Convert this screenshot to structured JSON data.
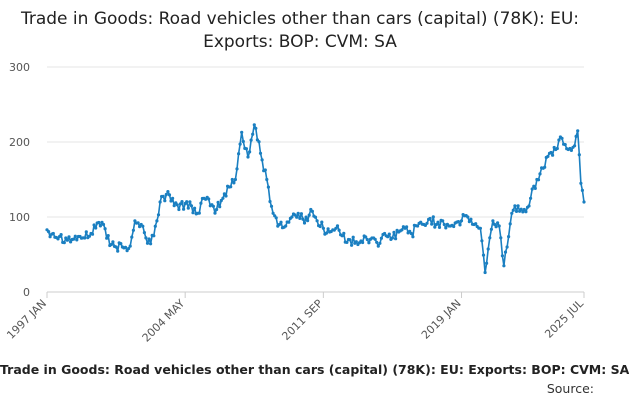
{
  "chart_data": {
    "type": "line",
    "title": "Trade in Goods: Road vehicles other than cars (capital) (78K): EU: Exports: BOP: CVM: SA",
    "footer_title": "Trade in Goods: Road vehicles other than cars (capital) (78K): EU: Exports: BOP: CVM: SA",
    "source_label": "Source:",
    "xlabel": "",
    "ylabel": "",
    "ylim": [
      0,
      300
    ],
    "yticks": [
      0,
      100,
      200,
      300
    ],
    "x_range": [
      "1997 JAN",
      "2025 JUL"
    ],
    "xticks": [
      "1997 JAN",
      "2004 MAY",
      "2011 SEP",
      "2019 JAN",
      "2025 JUL"
    ],
    "grid": "horizontal",
    "series_color": "#1a7fc1",
    "series": [
      {
        "name": "",
        "frequency": "monthly",
        "start": "1997 JAN",
        "end": "2025 JUL",
        "points": [
          [
            "1997 JAN",
            83
          ],
          [
            "1997 MAY",
            78
          ],
          [
            "1997 SEP",
            74
          ],
          [
            "1998 JAN",
            72
          ],
          [
            "1998 MAY",
            70
          ],
          [
            "1998 SEP",
            74
          ],
          [
            "1999 JAN",
            72
          ],
          [
            "1999 MAY",
            78
          ],
          [
            "1999 SEP",
            92
          ],
          [
            "2000 JAN",
            90
          ],
          [
            "2000 MAY",
            62
          ],
          [
            "2000 SEP",
            60
          ],
          [
            "2001 JAN",
            60
          ],
          [
            "2001 MAY",
            58
          ],
          [
            "2001 SEP",
            95
          ],
          [
            "2002 JAN",
            90
          ],
          [
            "2002 MAY",
            65
          ],
          [
            "2002 SEP",
            75
          ],
          [
            "2003 JAN",
            120
          ],
          [
            "2003 MAY",
            130
          ],
          [
            "2003 SEP",
            125
          ],
          [
            "2004 JAN",
            110
          ],
          [
            "2004 MAY",
            118
          ],
          [
            "2004 SEP",
            115
          ],
          [
            "2005 JAN",
            105
          ],
          [
            "2005 MAY",
            125
          ],
          [
            "2005 SEP",
            115
          ],
          [
            "2006 JAN",
            110
          ],
          [
            "2006 MAY",
            125
          ],
          [
            "2006 SEP",
            140
          ],
          [
            "2007 JAN",
            150
          ],
          [
            "2007 MAY",
            213
          ],
          [
            "2007 SEP",
            180
          ],
          [
            "2008 JAN",
            223
          ],
          [
            "2008 MAY",
            185
          ],
          [
            "2008 SEP",
            150
          ],
          [
            "2009 JAN",
            105
          ],
          [
            "2009 MAY",
            90
          ],
          [
            "2009 SEP",
            88
          ],
          [
            "2010 JAN",
            100
          ],
          [
            "2010 MAY",
            105
          ],
          [
            "2010 SEP",
            92
          ],
          [
            "2011 JAN",
            110
          ],
          [
            "2011 MAY",
            95
          ],
          [
            "2011 SEP",
            85
          ],
          [
            "2012 JAN",
            80
          ],
          [
            "2012 MAY",
            85
          ],
          [
            "2012 SEP",
            75
          ],
          [
            "2013 JAN",
            70
          ],
          [
            "2013 MAY",
            65
          ],
          [
            "2013 SEP",
            68
          ],
          [
            "2014 JAN",
            70
          ],
          [
            "2014 MAY",
            72
          ],
          [
            "2014 SEP",
            65
          ],
          [
            "2015 JAN",
            75
          ],
          [
            "2015 MAY",
            72
          ],
          [
            "2015 SEP",
            80
          ],
          [
            "2016 JAN",
            85
          ],
          [
            "2016 MAY",
            78
          ],
          [
            "2016 SEP",
            88
          ],
          [
            "2017 JAN",
            90
          ],
          [
            "2017 MAY",
            98
          ],
          [
            "2017 SEP",
            90
          ],
          [
            "2018 JAN",
            95
          ],
          [
            "2018 MAY",
            88
          ],
          [
            "2018 SEP",
            92
          ],
          [
            "2019 JAN",
            95
          ],
          [
            "2019 MAY",
            100
          ],
          [
            "2019 SEP",
            90
          ],
          [
            "2020 JAN",
            85
          ],
          [
            "2020 APR",
            26
          ],
          [
            "2020 SEP",
            95
          ],
          [
            "2021 JAN",
            88
          ],
          [
            "2021 APR",
            35
          ],
          [
            "2021 SEP",
            105
          ],
          [
            "2022 JAN",
            115
          ],
          [
            "2022 MAY",
            110
          ],
          [
            "2022 SEP",
            125
          ],
          [
            "2023 JAN",
            150
          ],
          [
            "2023 MAY",
            165
          ],
          [
            "2023 SEP",
            185
          ],
          [
            "2024 JAN",
            190
          ],
          [
            "2024 MAY",
            205
          ],
          [
            "2024 SEP",
            190
          ],
          [
            "2025 JAN",
            195
          ],
          [
            "2025 MAR",
            215
          ],
          [
            "2025 MAY",
            145
          ],
          [
            "2025 JUL",
            120
          ]
        ]
      }
    ]
  }
}
